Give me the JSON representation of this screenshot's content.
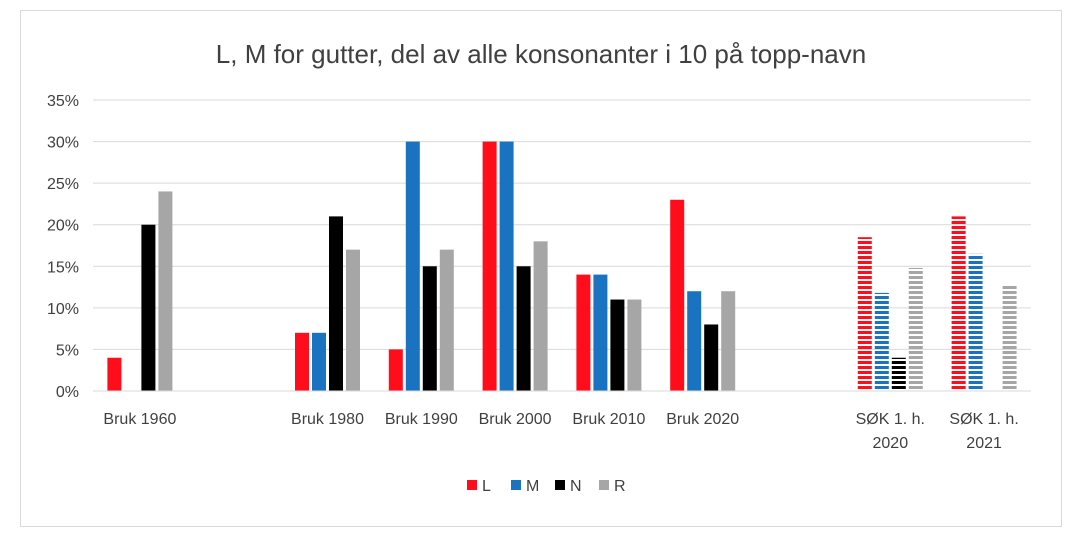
{
  "chart_data": {
    "type": "bar",
    "title": "L, M for gutter, del av alle konsonanter i 10 på topp-navn",
    "xlabel": "",
    "ylabel": "",
    "ylim": [
      0,
      0.35
    ],
    "yticks": [
      0,
      0.05,
      0.1,
      0.15,
      0.2,
      0.25,
      0.3,
      0.35
    ],
    "ytick_labels": [
      "0%",
      "5%",
      "10%",
      "15%",
      "20%",
      "25%",
      "30%",
      "35%"
    ],
    "grid": true,
    "legend_position": "bottom",
    "categories": [
      [
        "Bruk 1960"
      ],
      [],
      [
        "Bruk 1980"
      ],
      [
        "Bruk 1990"
      ],
      [
        "Bruk 2000"
      ],
      [
        "Bruk 2010"
      ],
      [
        "Bruk 2020"
      ],
      [],
      [
        "SØK 1. h.",
        "2020"
      ],
      [
        "SØK 1. h.",
        "2021"
      ]
    ],
    "series": [
      {
        "name": "L",
        "color": "#ff0d1b",
        "values": [
          0.04,
          null,
          0.07,
          0.05,
          0.3,
          0.14,
          0.23,
          null,
          0.185,
          0.21
        ]
      },
      {
        "name": "M",
        "color": "#1a73c1",
        "values": [
          null,
          null,
          0.07,
          0.3,
          0.3,
          0.14,
          0.12,
          null,
          0.118,
          0.165
        ]
      },
      {
        "name": "N",
        "color": "#000000",
        "values": [
          0.2,
          null,
          0.21,
          0.15,
          0.15,
          0.11,
          0.08,
          null,
          0.04,
          null
        ]
      },
      {
        "name": "R",
        "color": "#a6a6a6",
        "values": [
          0.24,
          null,
          0.17,
          0.17,
          0.18,
          0.11,
          0.12,
          null,
          0.148,
          0.128
        ]
      }
    ],
    "striped_categories": [
      8,
      9
    ]
  }
}
